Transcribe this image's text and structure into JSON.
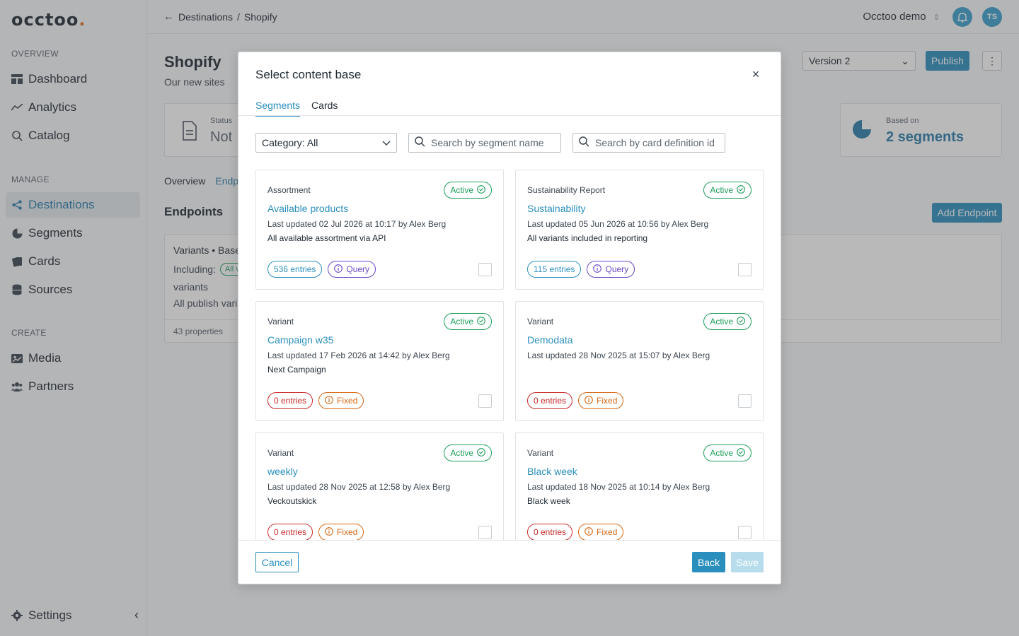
{
  "app": {
    "logo": "occtoo",
    "logo_dot": "."
  },
  "sidebar": {
    "sections": [
      {
        "label": "OVERVIEW"
      },
      {
        "label": "MANAGE"
      },
      {
        "label": "CREATE"
      }
    ],
    "items": [
      {
        "label": "Dashboard",
        "icon": "dashboard-icon"
      },
      {
        "label": "Analytics",
        "icon": "analytics-icon"
      },
      {
        "label": "Catalog",
        "icon": "search-icon"
      },
      {
        "label": "Destinations",
        "icon": "share-icon",
        "active": true
      },
      {
        "label": "Segments",
        "icon": "pie-icon"
      },
      {
        "label": "Cards",
        "icon": "cards-icon"
      },
      {
        "label": "Sources",
        "icon": "database-icon"
      },
      {
        "label": "Media",
        "icon": "image-icon"
      },
      {
        "label": "Partners",
        "icon": "people-icon"
      }
    ],
    "settings": "Settings"
  },
  "topbar": {
    "crumb_parent": "Destinations",
    "crumb_sep": "/",
    "crumb_current": "Shopify",
    "workspace": "Occtoo demo",
    "avatar": "TS"
  },
  "page": {
    "title": "Shopify",
    "subtitle": "Our new sites",
    "version": "Version 2",
    "publish": "Publish",
    "status_label": "Status",
    "status_value": "Not",
    "based_label": "Based on",
    "based_value": "2 segments",
    "tabs": [
      "Overview",
      "Endp"
    ],
    "endpoints_title": "Endpoints",
    "add_endpoint": "Add Endpoint",
    "endpoint": {
      "title": "Variants • Base",
      "including": "Including:",
      "pill": "All v",
      "variants": "variants",
      "desc": "All publish vari",
      "props": "43 properties"
    }
  },
  "modal": {
    "title": "Select content base",
    "tabs": [
      "Segments",
      "Cards"
    ],
    "category_select": "Category: All",
    "search_segment_placeholder": "Search by segment name",
    "search_card_placeholder": "Search by card definition id",
    "cancel": "Cancel",
    "back": "Back",
    "save": "Save",
    "cards": [
      {
        "category": "Assortment",
        "status": "Active",
        "name": "Available products",
        "updated": "Last updated 02 Jul 2026 at 10:17 by Alex Berg",
        "desc": "All available assortment via API",
        "entries": "536 entries",
        "type": "Query"
      },
      {
        "category": "Sustainability Report",
        "status": "Active",
        "name": "Sustainability",
        "updated": "Last updated 05 Jun 2026 at 10:56 by Alex Berg",
        "desc": "All variants included in reporting",
        "entries": "115 entries",
        "type": "Query"
      },
      {
        "category": "Variant",
        "status": "Active",
        "name": "Campaign w35",
        "updated": "Last updated 17 Feb 2026 at 14:42 by Alex Berg",
        "desc": "Next Campaign",
        "entries": "0 entries",
        "type": "Fixed"
      },
      {
        "category": "Variant",
        "status": "Active",
        "name": "Demodata",
        "updated": "Last updated 28 Nov 2025 at 15:07 by Alex Berg",
        "desc": "",
        "entries": "0 entries",
        "type": "Fixed"
      },
      {
        "category": "Variant",
        "status": "Active",
        "name": "weekly",
        "updated": "Last updated 28 Nov 2025 at 12:58 by Alex Berg",
        "desc": "Veckoutskick",
        "entries": "0 entries",
        "type": "Fixed"
      },
      {
        "category": "Variant",
        "status": "Active",
        "name": "Black week",
        "updated": "Last updated 18 Nov 2025 at 10:14 by Alex Berg",
        "desc": "Black week",
        "entries": "0 entries",
        "type": "Fixed"
      }
    ]
  },
  "colors": {
    "accent": "#2a8fbd",
    "active_green": "#1e9e5a",
    "query_purple": "#6a45c8",
    "fixed_orange": "#d66714",
    "zero_red": "#c62828"
  }
}
